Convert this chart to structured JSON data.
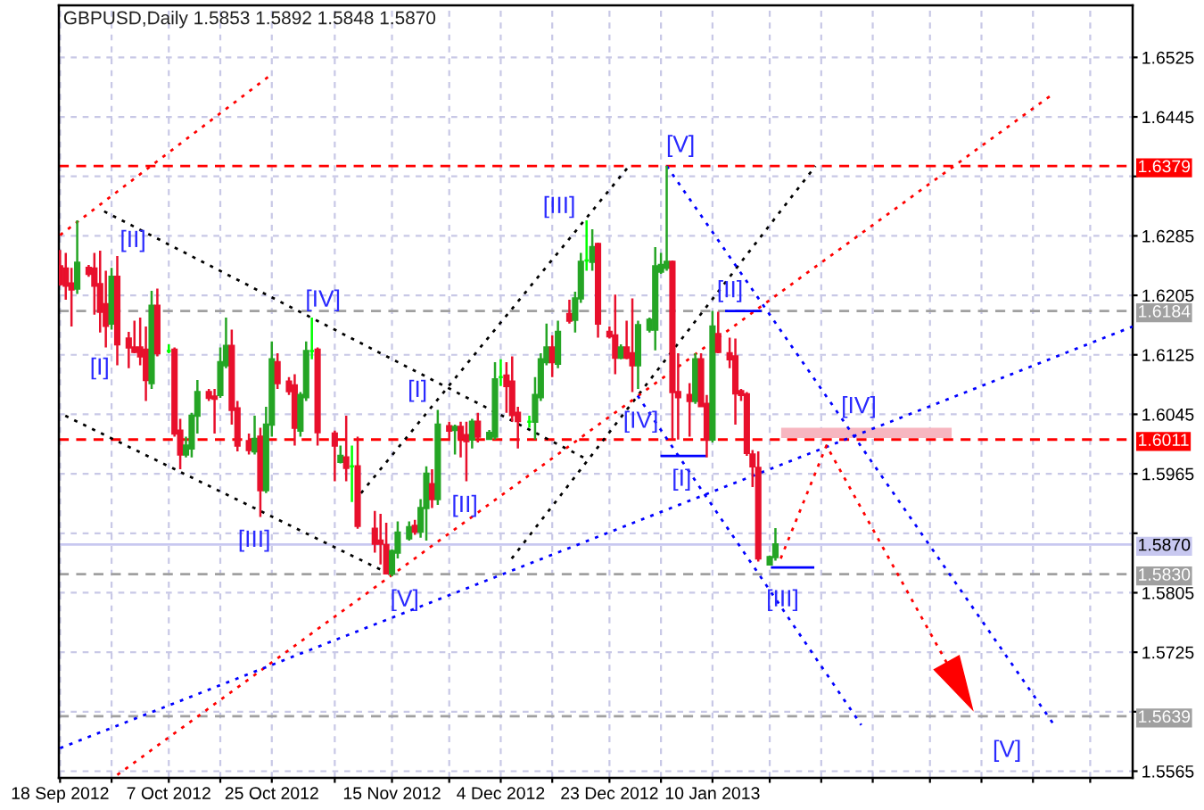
{
  "chart_data": {
    "type": "candlestick",
    "title": "GBPUSD,Daily 1.5853 1.5892 1.5848 1.5870",
    "x": [
      "2012-09-18",
      "2012-09-19",
      "2012-09-20",
      "2012-09-21",
      "2012-09-23",
      "2012-09-24",
      "2012-09-25",
      "2012-09-26",
      "2012-09-27",
      "2012-09-28",
      "2012-09-30",
      "2012-10-01",
      "2012-10-02",
      "2012-10-03",
      "2012-10-04",
      "2012-10-05",
      "2012-10-07",
      "2012-10-08",
      "2012-10-09",
      "2012-10-10",
      "2012-10-11",
      "2012-10-12",
      "2012-10-14",
      "2012-10-15",
      "2012-10-16",
      "2012-10-17",
      "2012-10-18",
      "2012-10-19",
      "2012-10-21",
      "2012-10-22",
      "2012-10-23",
      "2012-10-24",
      "2012-10-25",
      "2012-10-26",
      "2012-10-28",
      "2012-10-29",
      "2012-10-30",
      "2012-10-31",
      "2012-11-01",
      "2012-11-02",
      "2012-11-05",
      "2012-11-06",
      "2012-11-07",
      "2012-11-08",
      "2012-11-09",
      "2012-11-12",
      "2012-11-13",
      "2012-11-14",
      "2012-11-15",
      "2012-11-16",
      "2012-11-18",
      "2012-11-19",
      "2012-11-20",
      "2012-11-21",
      "2012-11-22",
      "2012-11-23",
      "2012-11-25",
      "2012-11-26",
      "2012-11-27",
      "2012-11-28",
      "2012-11-29",
      "2012-11-30",
      "2012-12-02",
      "2012-12-03",
      "2012-12-04",
      "2012-12-05",
      "2012-12-06",
      "2012-12-07",
      "2012-12-09",
      "2012-12-10",
      "2012-12-11",
      "2012-12-12",
      "2012-12-13",
      "2012-12-14",
      "2012-12-16",
      "2012-12-17",
      "2012-12-18",
      "2012-12-19",
      "2012-12-20",
      "2012-12-21",
      "2012-12-23",
      "2012-12-24",
      "2012-12-25",
      "2012-12-26",
      "2012-12-27",
      "2012-12-28",
      "2012-12-30",
      "2012-12-31",
      "2013-01-01",
      "2013-01-02",
      "2013-01-03",
      "2013-01-04",
      "2013-01-06",
      "2013-01-07",
      "2013-01-08",
      "2013-01-09",
      "2013-01-10",
      "2013-01-11",
      "2013-01-13",
      "2013-01-14",
      "2013-01-15",
      "2013-01-16",
      "2013-01-17",
      "2013-01-18",
      "2013-01-20",
      "2013-01-21"
    ],
    "ohlc": [
      [
        1.6244,
        1.6266,
        1.6218,
        1.622
      ],
      [
        1.6241,
        1.6262,
        1.6199,
        1.6218
      ],
      [
        1.6221,
        1.6242,
        1.6163,
        1.6213
      ],
      [
        1.6214,
        1.6306,
        1.6207,
        1.6249
      ],
      [
        1.6242,
        1.6246,
        1.623,
        1.6234
      ],
      [
        1.6241,
        1.6262,
        1.6179,
        1.6218
      ],
      [
        1.622,
        1.6265,
        1.6155,
        1.6183
      ],
      [
        1.6193,
        1.6238,
        1.6135,
        1.6164
      ],
      [
        1.6167,
        1.6242,
        1.6159,
        1.623
      ],
      [
        1.623,
        1.6258,
        1.6111,
        1.6139
      ],
      [
        1.6147,
        1.6156,
        1.6107,
        1.6135
      ],
      [
        1.6135,
        1.6171,
        1.6127,
        1.6129
      ],
      [
        1.6135,
        1.6175,
        1.6111,
        1.6123
      ],
      [
        1.6132,
        1.6163,
        1.6063,
        1.6091
      ],
      [
        1.6087,
        1.6211,
        1.6079,
        1.6191
      ],
      [
        1.6191,
        1.6214,
        1.6123,
        1.6127
      ],
      [
        1.613,
        1.6139,
        1.6127,
        1.613
      ],
      [
        1.6132,
        1.6135,
        1.6015,
        1.6019
      ],
      [
        1.6023,
        1.6039,
        1.5971,
        1.5991
      ],
      [
        1.5991,
        1.6015,
        1.5987,
        1.6003
      ],
      [
        1.5999,
        1.6047,
        1.5987,
        1.6043
      ],
      [
        1.6043,
        1.6091,
        1.6019,
        1.6075
      ],
      [
        1.6075,
        1.6079,
        1.6063,
        1.6067
      ],
      [
        1.6069,
        1.6079,
        1.6019,
        1.6066
      ],
      [
        1.6071,
        1.6135,
        1.6067,
        1.6115
      ],
      [
        1.6111,
        1.6175,
        1.6107,
        1.6137
      ],
      [
        1.6137,
        1.6159,
        1.6031,
        1.6051
      ],
      [
        1.6053,
        1.6063,
        1.5995,
        1.6003
      ],
      [
        1.6009,
        1.6019,
        1.5991,
        1.5997
      ],
      [
        1.5995,
        1.6043,
        1.5991,
        1.6012
      ],
      [
        1.6015,
        1.6027,
        1.5907,
        1.5943
      ],
      [
        1.5943,
        1.6055,
        1.5939,
        1.6031
      ],
      [
        1.6031,
        1.6143,
        1.6015,
        1.6119
      ],
      [
        1.6115,
        1.6127,
        1.6079,
        1.6087
      ],
      [
        1.6089,
        1.6095,
        1.6071,
        1.6076
      ],
      [
        1.6084,
        1.6099,
        1.6003,
        1.6027
      ],
      [
        1.6023,
        1.6075,
        1.6015,
        1.6071
      ],
      [
        1.6068,
        1.6143,
        1.6063,
        1.613
      ],
      [
        1.613,
        1.6175,
        1.6119,
        1.613
      ],
      [
        1.6132,
        1.6135,
        1.6003,
        1.6021
      ],
      [
        1.6019,
        1.6023,
        1.5955,
        1.6003
      ],
      [
        1.5981,
        1.6003,
        1.5979,
        1.5989
      ],
      [
        1.5987,
        1.6043,
        1.5955,
        1.5973
      ],
      [
        1.5975,
        1.6003,
        1.5927,
        1.5975
      ],
      [
        1.5975,
        1.6015,
        1.5891,
        1.5895
      ],
      [
        1.5891,
        1.5915,
        1.5859,
        1.5871
      ],
      [
        1.5875,
        1.5911,
        1.5843,
        1.5871
      ],
      [
        1.5869,
        1.5899,
        1.583,
        1.5831
      ],
      [
        1.5831,
        1.5863,
        1.5827,
        1.5861
      ],
      [
        1.5859,
        1.5901,
        1.5851,
        1.5886
      ],
      [
        1.5878,
        1.5901,
        1.5875,
        1.5893
      ],
      [
        1.5895,
        1.5903,
        1.5883,
        1.5887
      ],
      [
        1.5887,
        1.5931,
        1.5879,
        1.5919
      ],
      [
        1.5919,
        1.5975,
        1.5875,
        1.5965
      ],
      [
        1.5951,
        1.5971,
        1.5919,
        1.5931
      ],
      [
        1.5931,
        1.6051,
        1.5923,
        1.6031
      ],
      [
        1.6029,
        1.6035,
        1.6011,
        1.6023
      ],
      [
        1.6024,
        1.6031,
        1.5991,
        1.6028
      ],
      [
        1.6028,
        1.6035,
        1.5987,
        1.6013
      ],
      [
        1.6017,
        1.6035,
        1.5955,
        1.6009
      ],
      [
        1.6011,
        1.6039,
        1.5999,
        1.6035
      ],
      [
        1.6035,
        1.6047,
        1.6007,
        1.6015
      ],
      [
        1.6012,
        1.6024,
        1.6011,
        1.602
      ],
      [
        1.6015,
        1.6115,
        1.6011,
        1.6092
      ],
      [
        1.6095,
        1.6119,
        1.6083,
        1.6095
      ],
      [
        1.6097,
        1.6115,
        1.6047,
        1.6083
      ],
      [
        1.6089,
        1.6123,
        1.6035,
        1.6044
      ],
      [
        1.6047,
        1.6055,
        1.5999,
        1.6036
      ],
      [
        1.6035,
        1.6043,
        1.6027,
        1.6035
      ],
      [
        1.6035,
        1.6095,
        1.6011,
        1.6071
      ],
      [
        1.6068,
        1.6127,
        1.6063,
        1.6119
      ],
      [
        1.6115,
        1.6167,
        1.6111,
        1.6135
      ],
      [
        1.6135,
        1.6151,
        1.6095,
        1.6115
      ],
      [
        1.6113,
        1.6171,
        1.6107,
        1.6156
      ],
      [
        1.618,
        1.6199,
        1.6167,
        1.6171
      ],
      [
        1.6172,
        1.621,
        1.6155,
        1.6201
      ],
      [
        1.6201,
        1.6262,
        1.6195,
        1.625
      ],
      [
        1.6252,
        1.6306,
        1.6238,
        1.6252
      ],
      [
        1.625,
        1.6294,
        1.6238,
        1.627
      ],
      [
        1.6274,
        1.6276,
        1.6148,
        1.6167
      ],
      [
        1.6156,
        1.6163,
        1.6147,
        1.615
      ],
      [
        1.6151,
        1.6206,
        1.6099,
        1.6121
      ],
      [
        1.6121,
        1.6139,
        1.6119,
        1.6135
      ],
      [
        1.6135,
        1.6171,
        1.6119,
        1.6121
      ],
      [
        1.6127,
        1.6201,
        1.6075,
        1.6111
      ],
      [
        1.6111,
        1.6171,
        1.6079,
        1.6165
      ],
      [
        1.6159,
        1.6175,
        1.6155,
        1.6172
      ],
      [
        1.6159,
        1.627,
        1.6131,
        1.6244
      ],
      [
        1.6237,
        1.6262,
        1.6234,
        1.6246
      ],
      [
        1.6242,
        1.6379,
        1.6238,
        1.625
      ],
      [
        1.625,
        1.6252,
        1.6011,
        1.6075
      ],
      [
        1.6075,
        1.6127,
        1.6011,
        1.6068
      ],
      [
        1.6071,
        1.6087,
        1.6015,
        1.6063
      ],
      [
        1.6063,
        1.6127,
        1.6059,
        1.6119
      ],
      [
        1.6119,
        1.6127,
        1.6055,
        1.6056
      ],
      [
        1.6059,
        1.6071,
        1.5987,
        1.6011
      ],
      [
        1.6011,
        1.6184,
        1.6007,
        1.6163
      ],
      [
        1.6153,
        1.6183,
        1.6127,
        1.6129
      ],
      [
        1.6127,
        1.6148,
        1.6107,
        1.6119
      ],
      [
        1.6123,
        1.6147,
        1.6031,
        1.6073
      ],
      [
        1.6076,
        1.6079,
        1.6063,
        1.6071
      ],
      [
        1.6072,
        1.6075,
        1.5989,
        1.5993
      ],
      [
        1.5991,
        1.5997,
        1.5947,
        1.5975
      ],
      [
        1.5973,
        1.5995,
        1.5847,
        1.5851
      ],
      [
        1.5843,
        1.5855,
        1.5842,
        1.5853
      ],
      [
        1.5853,
        1.5892,
        1.5848,
        1.587
      ]
    ],
    "colors": [
      "#e8102c",
      "#e8102c",
      "#e8102c",
      "#25a525",
      "#e8102c",
      "#e8102c",
      "#e8102c",
      "#e8102c",
      "#25a525",
      "#e8102c",
      "#e8102c",
      "#e8102c",
      "#e8102c",
      "#e8102c",
      "#25a525",
      "#e8102c",
      "#00ff00",
      "#e8102c",
      "#e8102c",
      "#25a525",
      "#25a525",
      "#25a525",
      "#e8102c",
      "#e8102c",
      "#25a525",
      "#25a525",
      "#e8102c",
      "#e8102c",
      "#e8102c",
      "#25a525",
      "#e8102c",
      "#25a525",
      "#25a525",
      "#e8102c",
      "#e8102c",
      "#e8102c",
      "#25a525",
      "#25a525",
      "#00ff00",
      "#e8102c",
      "#e8102c",
      "#25a525",
      "#e8102c",
      "#00ff00",
      "#e8102c",
      "#e8102c",
      "#e8102c",
      "#e8102c",
      "#25a525",
      "#25a525",
      "#25a525",
      "#e8102c",
      "#25a525",
      "#25a525",
      "#e8102c",
      "#25a525",
      "#e8102c",
      "#25a525",
      "#e8102c",
      "#e8102c",
      "#25a525",
      "#e8102c",
      "#25a525",
      "#25a525",
      "#00ff00",
      "#e8102c",
      "#e8102c",
      "#e8102c",
      "#00ff00",
      "#25a525",
      "#25a525",
      "#25a525",
      "#e8102c",
      "#25a525",
      "#e8102c",
      "#25a525",
      "#25a525",
      "#00ff00",
      "#25a525",
      "#e8102c",
      "#e8102c",
      "#e8102c",
      "#25a525",
      "#e8102c",
      "#e8102c",
      "#25a525",
      "#25a525",
      "#25a525",
      "#25a525",
      "#25a525",
      "#e8102c",
      "#e8102c",
      "#e8102c",
      "#25a525",
      "#e8102c",
      "#e8102c",
      "#25a525",
      "#e8102c",
      "#e8102c",
      "#e8102c",
      "#e8102c",
      "#e8102c",
      "#e8102c",
      "#e8102c",
      "#25a525",
      "#25a525"
    ],
    "series": [
      {
        "type": "line",
        "x": [
          "2013-01-22",
          "2013-02-20T19:00"
        ],
        "values": [
          null,
          null
        ],
        "lower": [
          1.6013,
          1.6013
        ],
        "upper": [
          1.6027,
          1.6027
        ],
        "color": "#f7b6c0"
      },
      {
        "type": "line",
        "x": [
          "2012-09-25T17:00",
          "2012-12-19T05:00"
        ],
        "values": [
          1.6318,
          1.5984
        ],
        "color": "#000000",
        "line_style": "dotted"
      },
      {
        "type": "line",
        "x": [
          "2012-09-18T22:00",
          "2012-11-15T10:00"
        ],
        "values": [
          1.6043,
          1.5827
        ],
        "color": "#000000",
        "line_style": "dotted"
      },
      {
        "type": "line",
        "x": [
          "2012-11-09T14:00",
          "2012-12-26T10:00"
        ],
        "values": [
          1.5939,
          1.6379
        ],
        "color": "#000000",
        "line_style": "dotted"
      },
      {
        "type": "line",
        "x": [
          "2012-12-05T22:00",
          "2013-01-28"
        ],
        "values": [
          1.5851,
          1.6379
        ],
        "color": "#000000",
        "line_style": "dotted"
      },
      {
        "type": "line",
        "x": [
          "2012-09-18",
          "2012-10-25T02:00"
        ],
        "values": [
          1.6286,
          1.6503
        ],
        "color": "#ff0000",
        "line_style": "dotted"
      },
      {
        "type": "line",
        "x": [
          "2012-09-28",
          "2013-03-10T17:00"
        ],
        "values": [
          1.556,
          1.6477
        ],
        "color": "#ff0000",
        "line_style": "dotted"
      },
      {
        "type": "line",
        "x": [
          "2012-09-18",
          "2013-03-24T10:00"
        ],
        "values": [
          1.5596,
          1.6163
        ],
        "color": "#0000ff",
        "line_style": "dotted"
      },
      {
        "type": "line",
        "x": [
          "2013-01-02",
          "2013-03-10T17:00"
        ],
        "values": [
          1.6379,
          1.5627
        ],
        "color": "#0000ff",
        "line_style": "dotted"
      },
      {
        "type": "line",
        "x": [
          "2012-12-27T22:00",
          "2013-02-05"
        ],
        "values": [
          1.607,
          1.5627
        ],
        "color": "#0000ff",
        "line_style": "dotted"
      },
      {
        "type": "line",
        "x": [
          "2012-12-31T22:00",
          "2013-01-08T22:00"
        ],
        "values": [
          1.5989,
          1.5989
        ],
        "color": "#0000ff",
        "line_style": "solid"
      },
      {
        "type": "line",
        "x": [
          "2013-01-12T05:00",
          "2013-01-18T14:00"
        ],
        "values": [
          1.6184,
          1.6184
        ],
        "color": "#0000ff",
        "line_style": "solid"
      },
      {
        "type": "line",
        "x": [
          "2013-01-20T05:00",
          "2013-01-27T19:00"
        ],
        "values": [
          1.5839,
          1.5839
        ],
        "color": "#0000ff",
        "line_style": "solid"
      },
      {
        "type": "line",
        "x": [
          "2013-01-21T22:00",
          "2013-01-29T22:00",
          "2013-02-19T22:00"
        ],
        "values": [
          1.5851,
          1.6003,
          1.5711
        ],
        "color": "#ff0000",
        "line_style": "dotted"
      }
    ],
    "annotations": [
      "[I]",
      "[II]",
      "[III]",
      "[IV]",
      "[V]",
      "[I]",
      "[II]",
      "[III]",
      "[IV]",
      "[V]",
      "[I]",
      "[II]",
      "[III]",
      "[IV]",
      "[V]"
    ],
    "ref_lines": [
      {
        "axis": "y",
        "value": 1.6379,
        "label": "1.6379",
        "color": "#ff0000",
        "line_style": "dashed"
      },
      {
        "axis": "y",
        "value": 1.6184,
        "label": "1.6184",
        "color": "#a0a0a0",
        "line_style": "dashed"
      },
      {
        "axis": "y",
        "value": 1.6011,
        "label": "1.6011",
        "color": "#ff0000",
        "line_style": "dashed"
      },
      {
        "axis": "y",
        "value": 1.587,
        "label": "1.5870",
        "color": "#c8c8f0",
        "line_style": "solid"
      },
      {
        "axis": "y",
        "value": 1.583,
        "label": "1.5830",
        "color": "#a0a0a0",
        "line_style": "dashed"
      },
      {
        "axis": "y",
        "value": 1.5639,
        "label": "1.5639",
        "color": "#a0a0a0",
        "line_style": "dashed"
      }
    ],
    "xlim": [
      "2012-09-17T19:00",
      "2013-03-24T10:00"
    ],
    "ylim": [
      1.5556,
      1.6595
    ],
    "xticks": [
      {
        "value": "2012-09-18",
        "label": "18 Sep 2012"
      },
      {
        "value": "2012-09-27",
        "label": null
      },
      {
        "value": "2012-10-07",
        "label": "7 Oct 2012"
      },
      {
        "value": "2012-10-16",
        "label": null
      },
      {
        "value": "2012-10-25",
        "label": "25 Oct 2012"
      },
      {
        "value": "2012-11-05",
        "label": null
      },
      {
        "value": "2012-11-15",
        "label": "15 Nov 2012"
      },
      {
        "value": "2012-11-25",
        "label": null
      },
      {
        "value": "2012-12-04",
        "label": "4 Dec 2012"
      },
      {
        "value": "2012-12-13",
        "label": null
      },
      {
        "value": "2012-12-23",
        "label": "23 Dec 2012"
      },
      {
        "value": "2013-01-01",
        "label": null
      },
      {
        "value": "2013-01-10",
        "label": "10 Jan 2013"
      },
      {
        "value": "2013-01-20",
        "label": null
      },
      {
        "value": "2013-01-29",
        "label": null
      },
      {
        "value": "2013-02-07",
        "label": null
      },
      {
        "value": "2013-02-17",
        "label": null
      },
      {
        "value": "2013-02-26",
        "label": null
      },
      {
        "value": "2013-03-07",
        "label": null
      },
      {
        "value": "2013-03-17",
        "label": null
      }
    ],
    "yticks": [
      1.5565,
      {
        "value": 1.5645,
        "label": null
      },
      1.5725,
      1.5805,
      {
        "value": 1.5885,
        "label": null
      },
      1.5965,
      1.6045,
      1.6125,
      1.6205,
      1.6285,
      {
        "value": 1.6365,
        "label": null
      },
      1.6445,
      1.6525
    ],
    "grid": true
  }
}
